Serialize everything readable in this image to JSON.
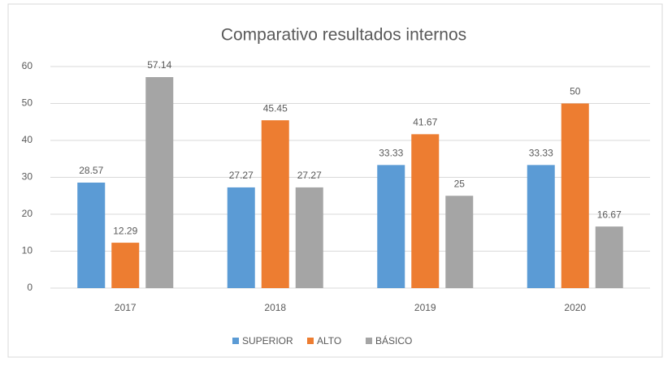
{
  "chart_data": {
    "type": "bar",
    "title": "Comparativo resultados internos",
    "categories": [
      "2017",
      "2018",
      "2019",
      "2020"
    ],
    "series": [
      {
        "name": "SUPERIOR",
        "color": "#5b9bd5",
        "values": [
          28.57,
          27.27,
          33.33,
          33.33
        ]
      },
      {
        "name": "ALTO",
        "color": "#ed7d31",
        "values": [
          12.29,
          45.45,
          41.67,
          50
        ]
      },
      {
        "name": "BÁSICO",
        "color": "#a5a5a5",
        "values": [
          57.14,
          27.27,
          25,
          16.67
        ]
      }
    ],
    "ylim": [
      0,
      60
    ],
    "yticks": [
      0,
      10,
      20,
      30,
      40,
      50,
      60
    ],
    "grid": true,
    "legend": "bottom"
  }
}
